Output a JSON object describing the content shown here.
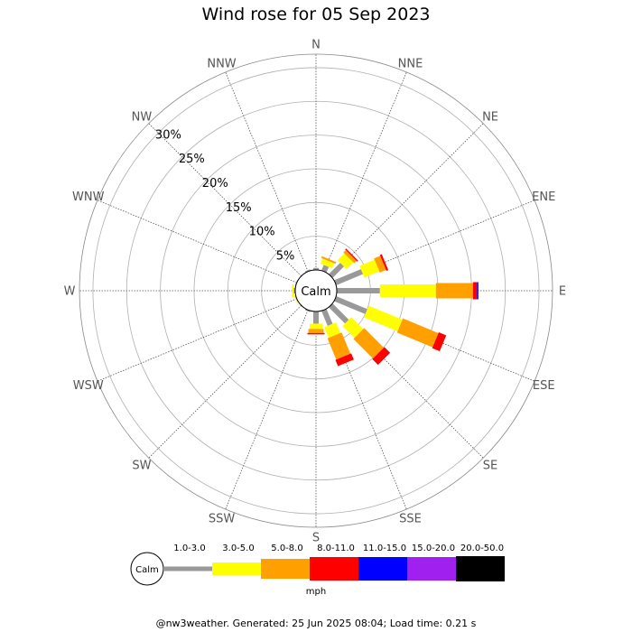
{
  "chart_data": {
    "type": "wind-rose",
    "title": "Wind rose for 05 Sep 2023",
    "directions": [
      "N",
      "NNE",
      "NE",
      "ENE",
      "E",
      "ESE",
      "SE",
      "SSE",
      "S",
      "SSW",
      "SW",
      "WSW",
      "W",
      "WNW",
      "NW",
      "NNW"
    ],
    "radial_ticks": [
      "5%",
      "10%",
      "15%",
      "20%",
      "25%",
      "30%"
    ],
    "radial_values": [
      5,
      10,
      15,
      20,
      25,
      30
    ],
    "rmax": 32,
    "center_label": "Calm",
    "unit": "mph",
    "speed_bins": [
      {
        "label": "1.0-3.0",
        "color": "#999999"
      },
      {
        "label": "3.0-5.0",
        "color": "#ffff00"
      },
      {
        "label": "5.0-8.0",
        "color": "#ffa000"
      },
      {
        "label": "8.0-11.0",
        "color": "#ff0000"
      },
      {
        "label": "11.0-15.0",
        "color": "#0000ff"
      },
      {
        "label": "15.0-20.0",
        "color": "#a020f0"
      },
      {
        "label": "20.0-50.0",
        "color": "#000000"
      }
    ],
    "values": {
      "N": [
        0.3,
        0.0,
        0.0,
        0.0,
        0.0,
        0.0,
        0.0
      ],
      "NNE": [
        0.9,
        0.8,
        0.3,
        0.0,
        0.0,
        0.0,
        0.0
      ],
      "NE": [
        2.4,
        1.4,
        0.5,
        0.2,
        0.0,
        0.0,
        0.0
      ],
      "ENE": [
        4.3,
        2.4,
        1.0,
        0.3,
        0.0,
        0.0,
        0.0
      ],
      "E": [
        6.4,
        8.3,
        5.5,
        0.6,
        0.2,
        0.0,
        0.0
      ],
      "ESE": [
        5.0,
        5.4,
        5.7,
        1.2,
        0.0,
        0.0,
        0.0
      ],
      "SE": [
        3.4,
        2.5,
        4.1,
        1.2,
        0.0,
        0.0,
        0.0
      ],
      "SSE": [
        2.4,
        1.7,
        3.4,
        1.0,
        0.0,
        0.0,
        0.0
      ],
      "S": [
        1.8,
        0.8,
        0.6,
        0.2,
        0.0,
        0.0,
        0.0
      ],
      "SSW": [
        0.2,
        0.0,
        0.0,
        0.0,
        0.0,
        0.0,
        0.0
      ],
      "SW": [
        0.0,
        0.0,
        0.0,
        0.0,
        0.0,
        0.0,
        0.0
      ],
      "WSW": [
        0.1,
        0.1,
        0.0,
        0.0,
        0.0,
        0.0,
        0.0
      ],
      "W": [
        0.2,
        0.3,
        0.0,
        0.0,
        0.0,
        0.0,
        0.0
      ],
      "WNW": [
        0.1,
        0.0,
        0.0,
        0.0,
        0.0,
        0.0,
        0.0
      ],
      "NW": [
        0.0,
        0.0,
        0.0,
        0.0,
        0.0,
        0.0,
        0.0
      ],
      "NNW": [
        0.2,
        0.0,
        0.0,
        0.0,
        0.0,
        0.0,
        0.0
      ]
    }
  },
  "footer": "@nw3weather. Generated: 25 Jun 2025 08:04; Load time: 0.21 s"
}
